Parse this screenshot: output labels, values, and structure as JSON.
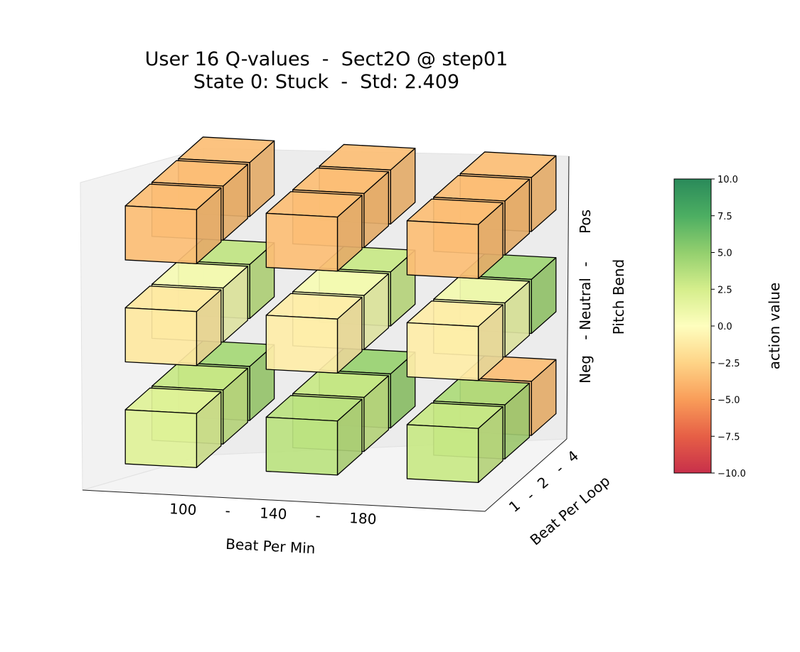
{
  "figure": {
    "title_line1": "User 16 Q-values  -  Sect2O @ step01",
    "title_line2": "State 0: Stuck  -  Std: 2.409"
  },
  "chart_data": {
    "type": "3d-bar",
    "title": "User 16 Q-values  -  Sect2O @ step01",
    "subtitle": "State 0: Stuck  -  Std: 2.409",
    "axes": {
      "x": {
        "label": "Beat Per Min",
        "ticks": [
          "100",
          "-",
          "140",
          "-",
          "180"
        ]
      },
      "y": {
        "label": "Beat Per Loop",
        "ticks": [
          "1",
          "-",
          "2",
          "-",
          "4"
        ]
      },
      "z": {
        "label": "Pitch Bend",
        "ticks": [
          "Neg",
          "-",
          "Neutral",
          "-",
          "Pos"
        ]
      }
    },
    "colorbar": {
      "label": "action value",
      "vmin": -10.0,
      "vmax": 10.0,
      "ticks": [
        "10.0",
        "7.5",
        "5.0",
        "2.5",
        "0.0",
        "−2.5",
        "−5.0",
        "−7.5",
        "−10.0"
      ],
      "colormap_stops": [
        "#c8304a",
        "#e65f46",
        "#f99d59",
        "#fed487",
        "#fefebe",
        "#d5ee8c",
        "#93cf6e",
        "#4cae62",
        "#2a8a5a"
      ]
    },
    "cubes": [
      {
        "bpm": "100",
        "bpl": "1",
        "pitch": "Neg",
        "value": 1.9
      },
      {
        "bpm": "100",
        "bpl": "2",
        "pitch": "Neg",
        "value": 3.0
      },
      {
        "bpm": "100",
        "bpl": "4",
        "pitch": "Neg",
        "value": 4.3
      },
      {
        "bpm": "140",
        "bpl": "1",
        "pitch": "Neg",
        "value": 3.5
      },
      {
        "bpm": "140",
        "bpl": "2",
        "pitch": "Neg",
        "value": 3.0
      },
      {
        "bpm": "140",
        "bpl": "4",
        "pitch": "Neg",
        "value": 4.8
      },
      {
        "bpm": "180",
        "bpl": "1",
        "pitch": "Neg",
        "value": 3.0
      },
      {
        "bpm": "180",
        "bpl": "2",
        "pitch": "Neg",
        "value": 4.0
      },
      {
        "bpm": "180",
        "bpl": "4",
        "pitch": "Neg",
        "value": -3.5
      },
      {
        "bpm": "100",
        "bpl": "1",
        "pitch": "Neutral",
        "value": -1.3
      },
      {
        "bpm": "100",
        "bpl": "2",
        "pitch": "Neutral",
        "value": 0.5
      },
      {
        "bpm": "100",
        "bpl": "4",
        "pitch": "Neutral",
        "value": 3.3
      },
      {
        "bpm": "140",
        "bpl": "1",
        "pitch": "Neutral",
        "value": -1.0
      },
      {
        "bpm": "140",
        "bpl": "2",
        "pitch": "Neutral",
        "value": 0.5
      },
      {
        "bpm": "140",
        "bpl": "4",
        "pitch": "Neutral",
        "value": 3.0
      },
      {
        "bpm": "180",
        "bpl": "1",
        "pitch": "Neutral",
        "value": -1.0
      },
      {
        "bpm": "180",
        "bpl": "2",
        "pitch": "Neutral",
        "value": 0.7
      },
      {
        "bpm": "180",
        "bpl": "4",
        "pitch": "Neutral",
        "value": 4.5
      },
      {
        "bpm": "100",
        "bpl": "1",
        "pitch": "Pos",
        "value": -3.5
      },
      {
        "bpm": "100",
        "bpl": "2",
        "pitch": "Pos",
        "value": -3.5
      },
      {
        "bpm": "100",
        "bpl": "4",
        "pitch": "Pos",
        "value": -3.5
      },
      {
        "bpm": "140",
        "bpl": "1",
        "pitch": "Pos",
        "value": -3.5
      },
      {
        "bpm": "140",
        "bpl": "2",
        "pitch": "Pos",
        "value": -3.5
      },
      {
        "bpm": "140",
        "bpl": "4",
        "pitch": "Pos",
        "value": -3.5
      },
      {
        "bpm": "180",
        "bpl": "1",
        "pitch": "Pos",
        "value": -3.5
      },
      {
        "bpm": "180",
        "bpl": "2",
        "pitch": "Pos",
        "value": -3.5
      },
      {
        "bpm": "180",
        "bpl": "4",
        "pitch": "Pos",
        "value": -3.5
      }
    ]
  }
}
